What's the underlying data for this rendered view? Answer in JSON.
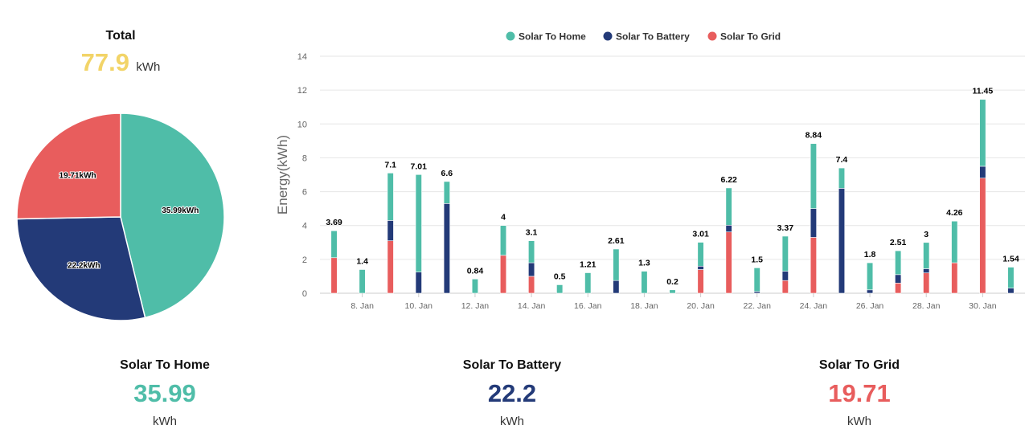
{
  "total": {
    "title": "Total",
    "value": "77.9",
    "unit": "kWh"
  },
  "colors": {
    "home": "#4fbda8",
    "battery": "#233a78",
    "grid": "#e85d5d",
    "total": "#f2d468"
  },
  "legend": [
    "Solar To Home",
    "Solar To Battery",
    "Solar To Grid"
  ],
  "chart_data": [
    {
      "type": "pie",
      "slices": [
        {
          "name": "Solar To Home",
          "value": 35.99,
          "label": "35.99kWh"
        },
        {
          "name": "Solar To Battery",
          "value": 22.2,
          "label": "22.2kWh"
        },
        {
          "name": "Solar To Grid",
          "value": 19.71,
          "label": "19.71kWh"
        }
      ]
    },
    {
      "type": "bar",
      "stacked": true,
      "ylabel": "Energy(kWh)",
      "ylim": [
        0,
        14
      ],
      "yticks": [
        "0",
        "2",
        "4",
        "6",
        "8",
        "10",
        "12",
        "14"
      ],
      "xtick_labels": [
        "8. Jan",
        "10. Jan",
        "12. Jan",
        "14. Jan",
        "16. Jan",
        "18. Jan",
        "20. Jan",
        "22. Jan",
        "24. Jan",
        "26. Jan",
        "28. Jan",
        "30. Jan"
      ],
      "legend_position": "top",
      "grid": true,
      "categories": [
        "7. Jan",
        "8. Jan",
        "9. Jan",
        "10. Jan",
        "11. Jan",
        "12. Jan",
        "13. Jan",
        "14. Jan",
        "15. Jan",
        "16. Jan",
        "17. Jan",
        "18. Jan",
        "19. Jan",
        "20. Jan",
        "21. Jan",
        "22. Jan",
        "23. Jan",
        "24. Jan",
        "25. Jan",
        "26. Jan",
        "27. Jan",
        "28. Jan",
        "29. Jan",
        "30. Jan",
        "31. Jan"
      ],
      "series": [
        {
          "name": "Solar To Home",
          "values": [
            1.59,
            1.4,
            2.8,
            5.76,
            1.3,
            0.84,
            1.76,
            1.3,
            0.5,
            1.21,
            1.86,
            1.3,
            0.2,
            1.41,
            2.2,
            1.4,
            2.07,
            3.84,
            1.2,
            1.6,
            1.41,
            1.55,
            2.46,
            3.95,
            1.24
          ]
        },
        {
          "name": "Solar To Battery",
          "values": [
            0,
            0,
            1.2,
            1.25,
            5.3,
            0,
            0,
            0.8,
            0,
            0,
            0.75,
            0,
            0,
            0.2,
            0.4,
            0.1,
            0.55,
            1.7,
            6.2,
            0.2,
            0.5,
            0.25,
            0,
            0.7,
            0.3
          ]
        },
        {
          "name": "Solar To Grid",
          "values": [
            2.1,
            0,
            3.1,
            0,
            0,
            0,
            2.24,
            1.0,
            0,
            0,
            0,
            0,
            0,
            1.4,
            3.62,
            0,
            0.75,
            3.3,
            0,
            0,
            0.6,
            1.2,
            1.8,
            6.8,
            0
          ]
        }
      ],
      "totals": [
        "3.69",
        "1.4",
        "7.1",
        "7.01",
        "6.6",
        "0.84",
        "4",
        "3.1",
        "0.5",
        "1.21",
        "2.61",
        "1.3",
        "0.2",
        "3.01",
        "6.22",
        "1.5",
        "3.37",
        "8.84",
        "7.4",
        "1.8",
        "2.51",
        "3",
        "4.26",
        "11.45",
        "1.54"
      ]
    }
  ],
  "stats": [
    {
      "title": "Solar To Home",
      "value": "35.99",
      "unit": "kWh"
    },
    {
      "title": "Solar To Battery",
      "value": "22.2",
      "unit": "kWh"
    },
    {
      "title": "Solar To Grid",
      "value": "19.71",
      "unit": "kWh"
    }
  ]
}
